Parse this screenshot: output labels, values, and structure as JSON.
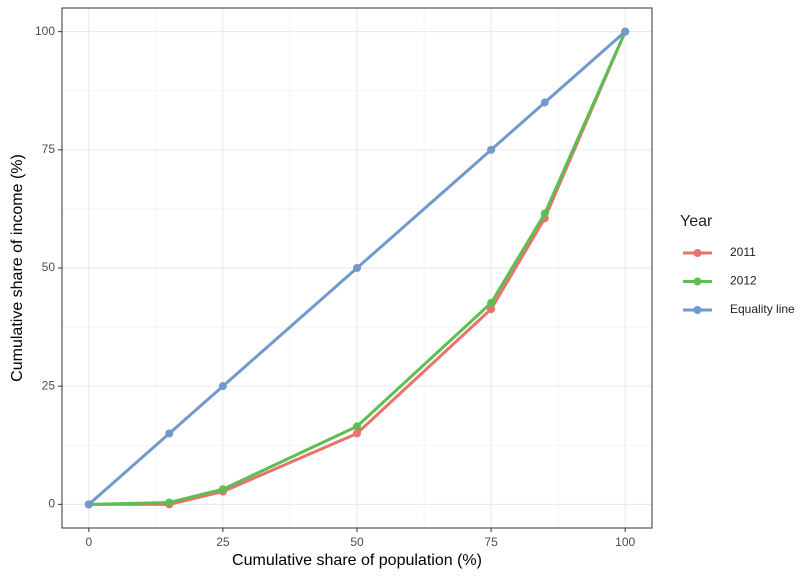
{
  "chart_data": {
    "type": "line",
    "x_label": "Cumulative share of population (%)",
    "y_label": "Cumulative share of income (%)",
    "x": [
      0,
      15,
      25,
      50,
      75,
      85,
      100
    ],
    "series": [
      {
        "name": "2011",
        "color": "#E8726C",
        "values": [
          0,
          0,
          2.7,
          15,
          41.3,
          60.5,
          100
        ]
      },
      {
        "name": "2012",
        "color": "#5DBE52",
        "values": [
          0,
          0.4,
          3.2,
          16.5,
          42.6,
          61.5,
          100
        ]
      },
      {
        "name": "Equality line",
        "color": "#7199CF",
        "values": [
          0,
          15,
          25,
          50,
          75,
          85,
          100
        ]
      }
    ],
    "legend_title": "Year",
    "legend_position": "right",
    "xlim": [
      -5,
      105
    ],
    "ylim": [
      -5,
      105
    ],
    "xticks": [
      0,
      25,
      50,
      75,
      100
    ],
    "yticks": [
      0,
      25,
      50,
      75,
      100
    ],
    "xminor": [
      12.5,
      37.5,
      62.5,
      87.5
    ],
    "yminor": [
      12.5,
      37.5,
      62.5,
      87.5
    ],
    "grid": true
  }
}
